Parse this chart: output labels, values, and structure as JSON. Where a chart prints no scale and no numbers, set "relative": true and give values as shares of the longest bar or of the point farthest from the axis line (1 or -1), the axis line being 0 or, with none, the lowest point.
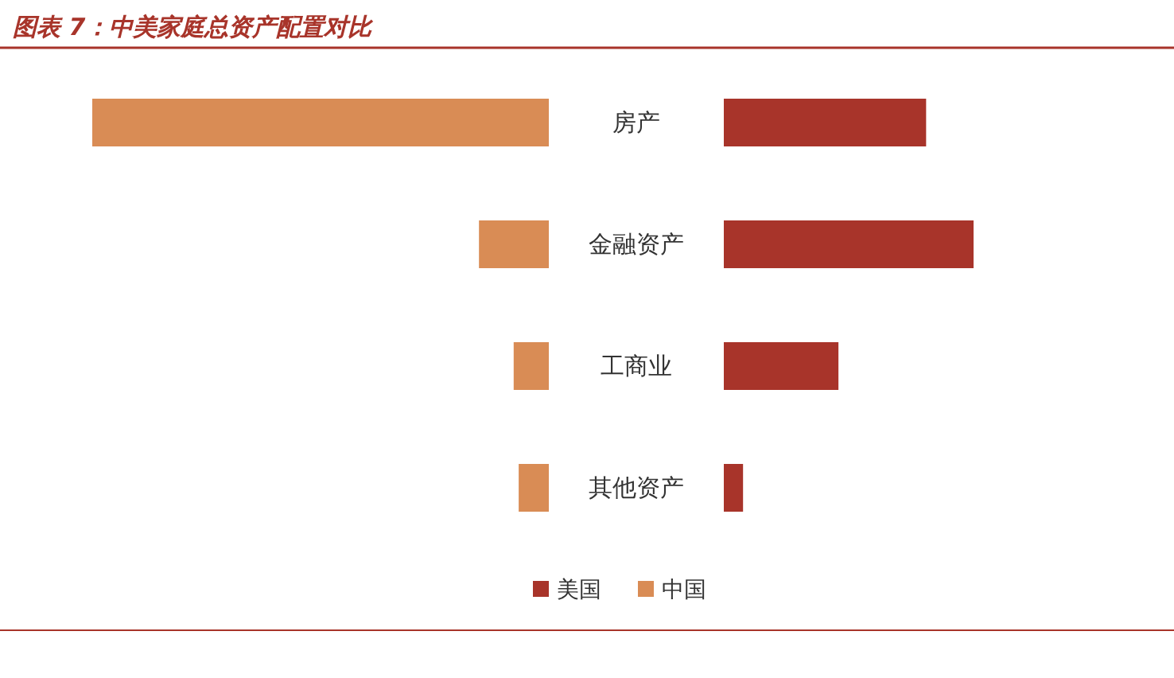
{
  "chart_data": [
    {
      "type": "bar",
      "orientation": "horizontal",
      "relative": true,
      "legend": "bottom",
      "title": "图表 7：中美家庭总资产配置对比",
      "categories": [
        "房产",
        "金融资产",
        "工商业",
        "其他资产"
      ],
      "tick_labels": false,
      "series": [
        {
          "name": "中国",
          "color": "#d98c55",
          "values": [
            1,
            0.153,
            0.077,
            0.066
          ]
        }
      ]
    },
    {
      "type": "bar",
      "orientation": "horizontal",
      "relative": true,
      "legend": "bottom",
      "categories": [
        "房产",
        "金融资产",
        "工商业",
        "其他资产"
      ],
      "series": [
        {
          "name": "美国",
          "color": "#a8342a",
          "values": [
            0.81,
            1,
            0.459,
            0.077
          ]
        }
      ]
    }
  ]
}
